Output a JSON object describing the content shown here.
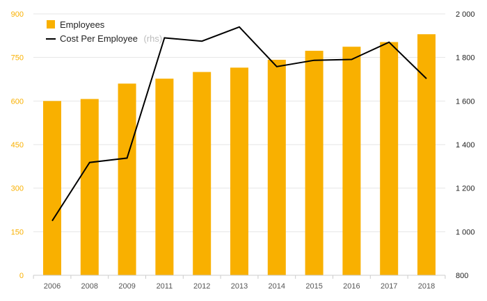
{
  "chart_data": {
    "type": "bar+line",
    "categories": [
      "2006",
      "2008",
      "2009",
      "2011",
      "2012",
      "2013",
      "2014",
      "2015",
      "2016",
      "2017",
      "2018"
    ],
    "series": [
      {
        "name": "Employees",
        "type": "bar",
        "axis": "left",
        "color": "#f9b000",
        "values": [
          600,
          607,
          660,
          677,
          700,
          715,
          742,
          773,
          787,
          803,
          830
        ]
      },
      {
        "name": "Cost Per Employee",
        "name_suffix": "(rhs)",
        "type": "line",
        "axis": "right",
        "color": "#000000",
        "values": [
          1050,
          1318,
          1338,
          1890,
          1875,
          1940,
          1758,
          1787,
          1791,
          1870,
          1703
        ]
      }
    ],
    "y_left": {
      "ticks": [
        "0",
        "150",
        "300",
        "450",
        "600",
        "750",
        "900"
      ],
      "ylim": [
        0,
        900
      ],
      "color": "#f9b000"
    },
    "y_right": {
      "ticks": [
        "800",
        "1 000",
        "1 200",
        "1 400",
        "1 600",
        "1 800",
        "2 000"
      ],
      "ylim": [
        800,
        2000
      ]
    },
    "grid": true,
    "legend": "top-left"
  }
}
